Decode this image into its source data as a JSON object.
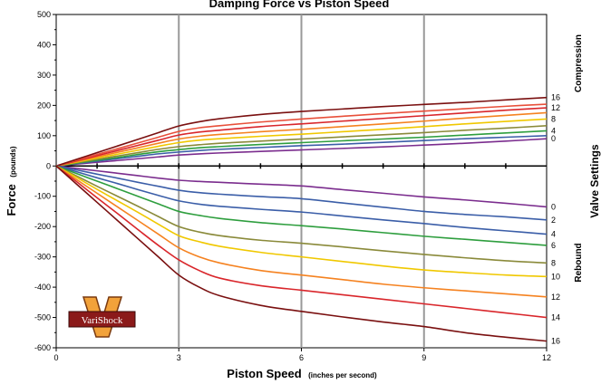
{
  "chart_data": {
    "type": "line",
    "title": "Damping Force vs Piston Speed",
    "xlabel": "Piston Speed",
    "xlabel_unit": "(inches per second)",
    "ylabel": "Force",
    "ylabel_unit": "(pounds)",
    "xlim": [
      0,
      12
    ],
    "ylim": [
      -600,
      500
    ],
    "x_ticks": [
      "0",
      "3",
      "6",
      "9",
      "12"
    ],
    "y_ticks": [
      "500",
      "400",
      "300",
      "200",
      "100",
      "0",
      "-100",
      "-200",
      "-300",
      "-400",
      "-500",
      "-600"
    ],
    "grid": "vertical at x = 3, 6, 9, 12",
    "right_axis_title": "Valve Settings",
    "compression_label": "Compression",
    "rebound_label": "Rebound",
    "logo_text": "VariShock",
    "x": [
      0,
      0.5,
      1,
      1.5,
      2,
      2.5,
      3,
      3.5,
      4,
      5,
      6,
      7,
      8,
      9,
      10,
      11,
      12
    ],
    "compression": [
      {
        "name": "0",
        "color": "#7b2d8e",
        "values": [
          0,
          6,
          12,
          18,
          24,
          30,
          36,
          40,
          43,
          48,
          53,
          58,
          63,
          69,
          75,
          82,
          90
        ]
      },
      {
        "name": "",
        "color": "#3b5ea8",
        "values": [
          0,
          8,
          16,
          24,
          32,
          40,
          46,
          51,
          55,
          61,
          67,
          72,
          78,
          84,
          90,
          95,
          100
        ]
      },
      {
        "name": "4",
        "color": "#2e9e3e",
        "values": [
          0,
          9,
          19,
          28,
          38,
          47,
          54,
          60,
          64,
          71,
          77,
          83,
          89,
          95,
          102,
          109,
          116
        ]
      },
      {
        "name": "",
        "color": "#8a8a3a",
        "values": [
          0,
          11,
          22,
          33,
          44,
          55,
          64,
          70,
          75,
          82,
          89,
          96,
          103,
          110,
          118,
          125,
          133
        ]
      },
      {
        "name": "8",
        "color": "#f0c800",
        "values": [
          0,
          13,
          26,
          39,
          52,
          65,
          77,
          85,
          90,
          98,
          105,
          113,
          121,
          130,
          139,
          147,
          155
        ]
      },
      {
        "name": "",
        "color": "#f58220",
        "values": [
          0,
          15,
          30,
          45,
          60,
          75,
          89,
          98,
          104,
          113,
          121,
          130,
          139,
          148,
          158,
          167,
          176
        ]
      },
      {
        "name": "12",
        "color": "#d9262b",
        "values": [
          0,
          17,
          34,
          51,
          68,
          85,
          102,
          112,
          118,
          130,
          139,
          148,
          157,
          166,
          175,
          184,
          192
        ]
      },
      {
        "name": "",
        "color": "#e8503a",
        "values": [
          0,
          19,
          38,
          57,
          76,
          95,
          114,
          126,
          133,
          145,
          155,
          164,
          173,
          181,
          189,
          197,
          204
        ]
      },
      {
        "name": "16",
        "color": "#7a1010",
        "values": [
          0,
          22,
          44,
          66,
          88,
          110,
          132,
          146,
          156,
          170,
          180,
          188,
          196,
          203,
          210,
          218,
          226
        ]
      }
    ],
    "rebound": [
      {
        "name": "0",
        "color": "#7b2d8e",
        "values": [
          0,
          -8,
          -16,
          -24,
          -32,
          -40,
          -47,
          -51,
          -54,
          -60,
          -66,
          -78,
          -90,
          -102,
          -112,
          -123,
          -135
        ]
      },
      {
        "name": "2",
        "color": "#3b5ea8",
        "values": [
          0,
          -13,
          -27,
          -40,
          -54,
          -67,
          -80,
          -88,
          -93,
          -101,
          -108,
          -122,
          -136,
          -150,
          -160,
          -168,
          -178
        ]
      },
      {
        "name": "4",
        "color": "#3b5ea8",
        "values": [
          0,
          -19,
          -39,
          -58,
          -78,
          -97,
          -115,
          -126,
          -133,
          -143,
          -152,
          -165,
          -178,
          -190,
          -203,
          -214,
          -225
        ]
      },
      {
        "name": "6",
        "color": "#2e9e3e",
        "values": [
          0,
          -25,
          -50,
          -75,
          -100,
          -125,
          -150,
          -163,
          -173,
          -187,
          -197,
          -208,
          -220,
          -232,
          -242,
          -252,
          -262
        ]
      },
      {
        "name": "8",
        "color": "#8a8a3a",
        "values": [
          0,
          -33,
          -67,
          -100,
          -133,
          -167,
          -200,
          -218,
          -230,
          -245,
          -255,
          -267,
          -280,
          -292,
          -303,
          -313,
          -320
        ]
      },
      {
        "name": "10",
        "color": "#f0c800",
        "values": [
          0,
          -38,
          -77,
          -115,
          -153,
          -192,
          -230,
          -250,
          -265,
          -285,
          -300,
          -315,
          -330,
          -343,
          -352,
          -360,
          -365
        ]
      },
      {
        "name": "12",
        "color": "#f58220",
        "values": [
          0,
          -45,
          -90,
          -135,
          -180,
          -225,
          -270,
          -300,
          -320,
          -345,
          -360,
          -375,
          -390,
          -402,
          -412,
          -422,
          -432
        ]
      },
      {
        "name": "14",
        "color": "#d9262b",
        "values": [
          0,
          -52,
          -105,
          -157,
          -210,
          -262,
          -310,
          -345,
          -370,
          -395,
          -410,
          -425,
          -440,
          -455,
          -470,
          -485,
          -500
        ]
      },
      {
        "name": "16",
        "color": "#7a1010",
        "values": [
          0,
          -60,
          -120,
          -180,
          -240,
          -300,
          -360,
          -400,
          -428,
          -460,
          -480,
          -498,
          -515,
          -530,
          -550,
          -565,
          -578
        ]
      }
    ]
  }
}
